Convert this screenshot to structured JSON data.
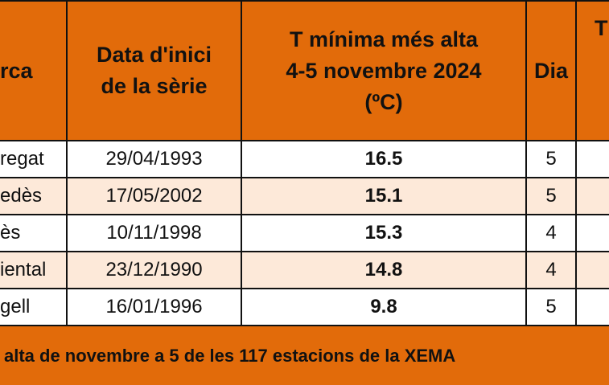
{
  "header": {
    "cells": [
      [
        "rca"
      ],
      [
        "Data d'inici",
        "de la sèrie"
      ],
      [
        "T mínima més alta",
        "4-5 novembre 2024",
        "(ºC)"
      ],
      [
        "Dia"
      ],
      [
        "T"
      ]
    ]
  },
  "rows": [
    [
      "regat",
      "29/04/1993",
      "16.5",
      "5"
    ],
    [
      "edès",
      "17/05/2002",
      "15.1",
      "5"
    ],
    [
      "ès",
      "10/11/1998",
      "15.3",
      "4"
    ],
    [
      "iental",
      "23/12/1990",
      "14.8",
      "4"
    ],
    [
      "gell",
      "16/01/1996",
      "9.8",
      "5"
    ]
  ],
  "footer": {
    "text": "alta de novembre a 5 de les 117 estacions de la XEMA"
  }
}
